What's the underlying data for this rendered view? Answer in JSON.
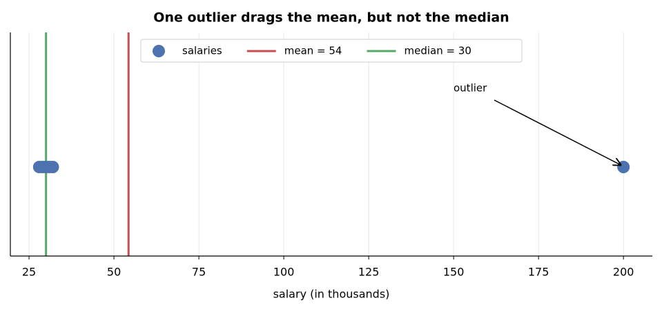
{
  "chart_data": {
    "type": "scatter",
    "title": "One outlier drags the mean, but not the median",
    "x_label": "salary (in thousands)",
    "series": [
      {
        "name": "salaries",
        "color": "#4c72b0",
        "x": [
          28,
          29,
          30,
          30,
          31,
          32,
          200
        ]
      }
    ],
    "lines": [
      {
        "name": "mean = 54",
        "value": 54.29,
        "color": "#c44e52"
      },
      {
        "name": "median = 30",
        "value": 30,
        "color": "#55a868"
      }
    ],
    "annotation": "outlier",
    "xlim": [
      19.5,
      208.5
    ],
    "xticks": [
      25,
      50,
      75,
      100,
      125,
      150,
      175,
      200
    ],
    "grid": true,
    "legend": "upper center"
  }
}
